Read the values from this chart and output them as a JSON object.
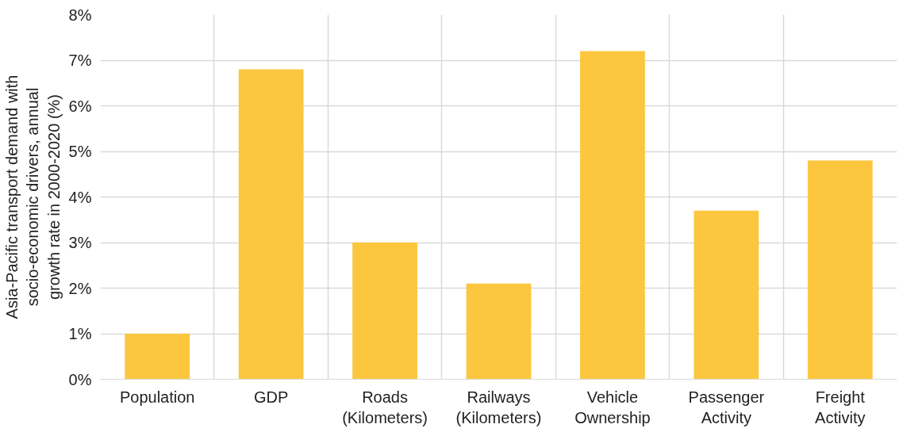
{
  "chart_data": {
    "type": "bar",
    "ylabel": "Asia-Pacific transport demand with\nsocio-economic drivers, annual\ngrowth rate in 2000-2020 (%)",
    "categories": [
      "Population",
      "GDP",
      "Roads\n(Kilometers)",
      "Railways\n(Kilometers)",
      "Vehicle\nOwnership",
      "Passenger\nActivity",
      "Freight\nActivity"
    ],
    "values": [
      1.0,
      6.8,
      3.0,
      2.1,
      7.2,
      3.7,
      4.8
    ],
    "color": "#fcc63f",
    "ylim": [
      0,
      8
    ],
    "yticks": [
      {
        "value": 0,
        "label": "0%"
      },
      {
        "value": 1,
        "label": "1%"
      },
      {
        "value": 2,
        "label": "2%"
      },
      {
        "value": 3,
        "label": "3%"
      },
      {
        "value": 4,
        "label": "4%"
      },
      {
        "value": 5,
        "label": "5%"
      },
      {
        "value": 6,
        "label": "6%"
      },
      {
        "value": 7,
        "label": "7%"
      },
      {
        "value": 8,
        "label": "8%"
      }
    ],
    "grid": true
  }
}
